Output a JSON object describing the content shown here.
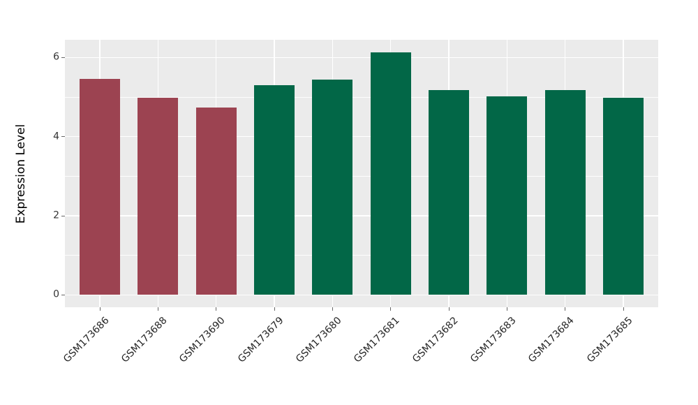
{
  "chart_data": {
    "type": "bar",
    "title": "",
    "xlabel": "",
    "ylabel": "Expression Level",
    "categories": [
      "GSM173686",
      "GSM173688",
      "GSM173690",
      "GSM173679",
      "GSM173680",
      "GSM173681",
      "GSM173682",
      "GSM173683",
      "GSM173684",
      "GSM173685"
    ],
    "values": [
      5.46,
      4.98,
      4.73,
      5.3,
      5.44,
      6.14,
      5.18,
      5.02,
      5.18,
      4.98
    ],
    "bar_colors": [
      "#9C4351",
      "#9C4351",
      "#9C4351",
      "#026747",
      "#026747",
      "#026747",
      "#026747",
      "#026747",
      "#026747",
      "#026747"
    ],
    "group_colors": {
      "left_group": "#9C4351",
      "right_group": "#026747"
    },
    "ytick_labels": [
      "0",
      "2",
      "4",
      "6"
    ],
    "ytick_values": [
      0,
      2,
      4,
      6
    ],
    "ytick_minor_values": [
      1,
      3,
      5
    ],
    "ylim": [
      -0.31,
      6.45
    ],
    "bar_width_frac": 0.7,
    "grid": true,
    "legend_position": "none",
    "panel_bg": "#EBEBEB",
    "grid_color": "#FFFFFF",
    "x_label_rotation_deg": 45
  }
}
